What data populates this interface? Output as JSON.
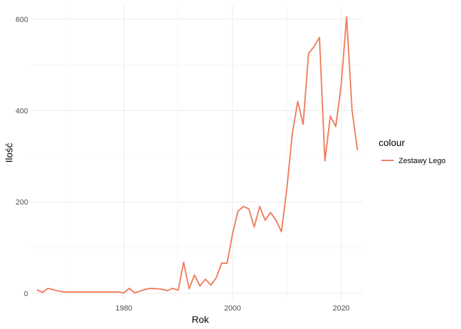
{
  "chart_data": {
    "type": "line",
    "xlabel": "Rok",
    "ylabel": "Ilość",
    "xlim": [
      1963,
      2024
    ],
    "ylim": [
      -15,
      630
    ],
    "x_ticks": [
      1980,
      2000,
      2020
    ],
    "y_ticks": [
      0,
      200,
      400,
      600
    ],
    "grid": true,
    "legend": {
      "title": "colour",
      "position": "right",
      "entries": [
        "Zestawy Lego"
      ]
    },
    "series": [
      {
        "name": "Zestawy Lego",
        "color": "#f08060",
        "x": [
          1964,
          1965,
          1966,
          1967,
          1968,
          1969,
          1970,
          1971,
          1972,
          1973,
          1974,
          1975,
          1976,
          1977,
          1978,
          1979,
          1980,
          1981,
          1982,
          1983,
          1984,
          1985,
          1986,
          1987,
          1988,
          1989,
          1990,
          1991,
          1992,
          1993,
          1994,
          1995,
          1996,
          1997,
          1998,
          1999,
          2000,
          2001,
          2002,
          2003,
          2004,
          2005,
          2006,
          2007,
          2008,
          2009,
          2010,
          2011,
          2012,
          2013,
          2014,
          2015,
          2016,
          2017,
          2018,
          2019,
          2020,
          2021,
          2022,
          2023
        ],
        "values": [
          8,
          2,
          11,
          8,
          5,
          3,
          3,
          3,
          3,
          3,
          3,
          3,
          3,
          3,
          3,
          3,
          1,
          11,
          1,
          5,
          9,
          11,
          10,
          9,
          6,
          11,
          7,
          68,
          10,
          40,
          16,
          31,
          18,
          34,
          66,
          66,
          130,
          180,
          190,
          185,
          145,
          190,
          160,
          177,
          160,
          135,
          228,
          350,
          420,
          370,
          525,
          540,
          560,
          290,
          388,
          365,
          455,
          605,
          400,
          313
        ]
      }
    ]
  }
}
